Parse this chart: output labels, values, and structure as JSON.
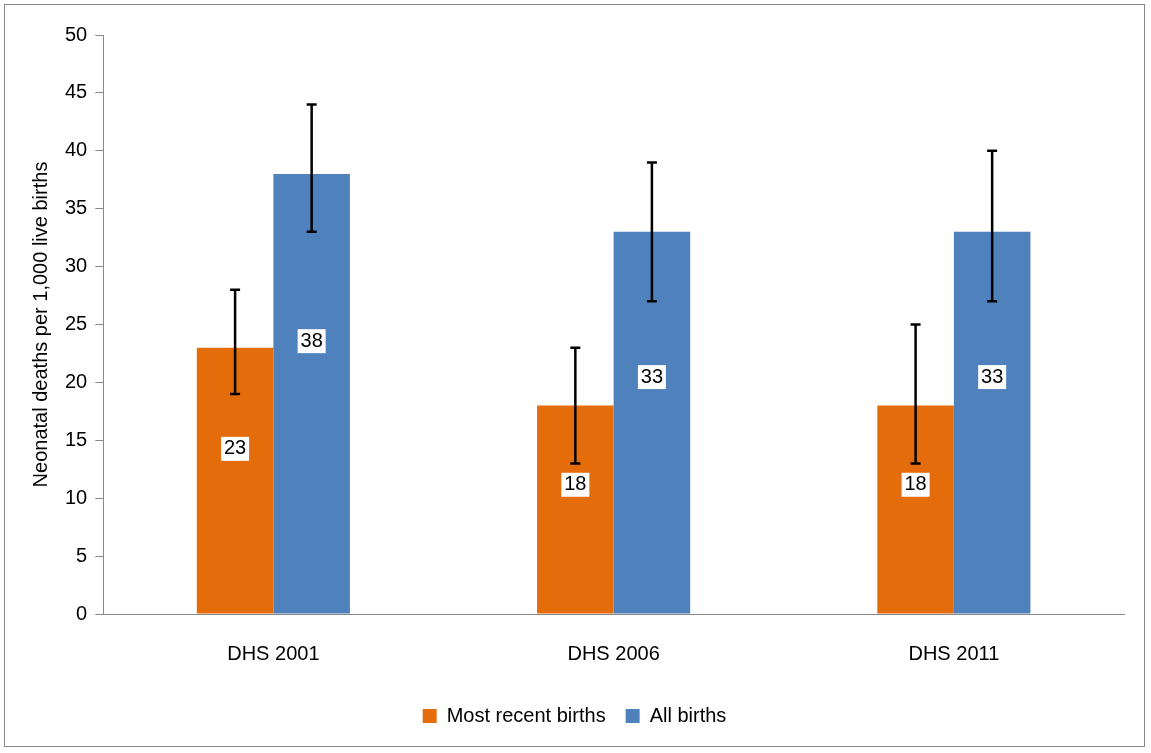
{
  "chart_data": {
    "type": "bar",
    "ylabel": "Neonatal deaths per 1,000 live births",
    "categories": [
      "DHS 2001",
      "DHS 2006",
      "DHS 2011"
    ],
    "series": [
      {
        "name": "Most recent births",
        "color": "#e46c0a",
        "values": [
          23,
          18,
          18
        ],
        "errors": [
          [
            19,
            28
          ],
          [
            13,
            23
          ],
          [
            13,
            25
          ]
        ]
      },
      {
        "name": "All births",
        "color": "#4f81bd",
        "values": [
          38,
          33,
          33
        ],
        "errors": [
          [
            33,
            44
          ],
          [
            27,
            39
          ],
          [
            27,
            40
          ]
        ]
      }
    ],
    "ylim": [
      0,
      50
    ],
    "yticks": [
      0,
      5,
      10,
      15,
      20,
      25,
      30,
      35,
      40,
      45,
      50
    ],
    "grid": false,
    "legend": "bottom",
    "data_labels": true
  }
}
